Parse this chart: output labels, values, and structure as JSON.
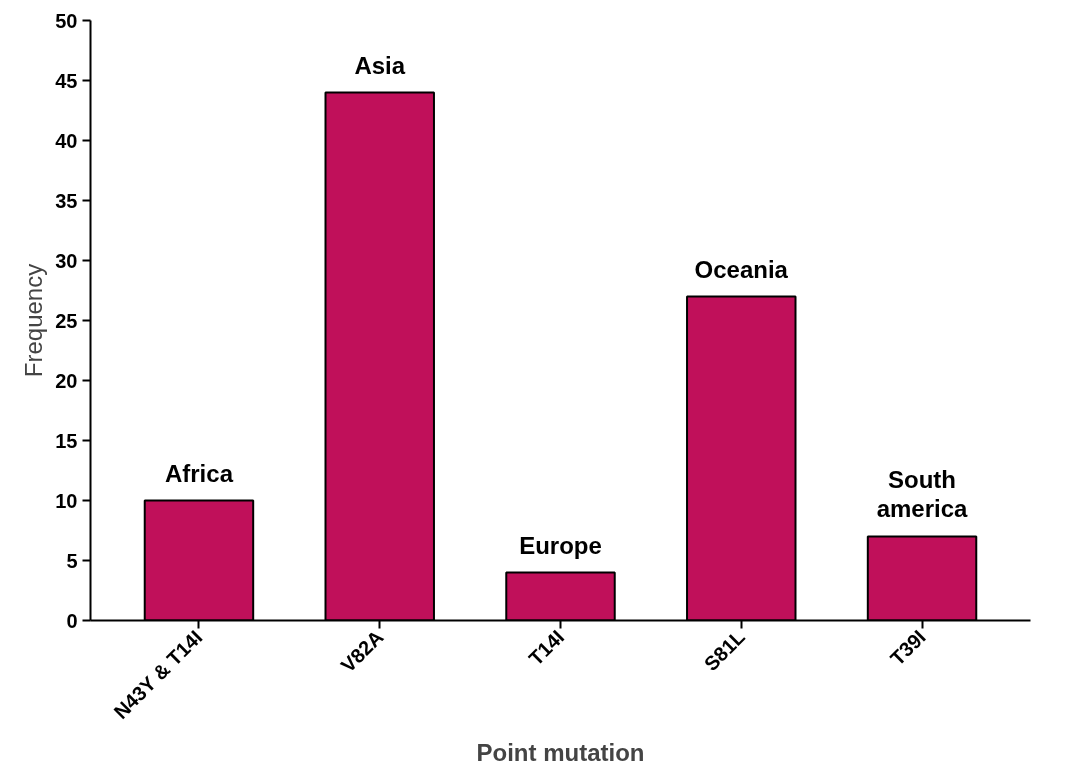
{
  "chart_data": {
    "type": "bar",
    "xlabel": "Point mutation",
    "ylabel": "Frequency",
    "categories": [
      "N43Y & T14I",
      "V82A",
      "T14I",
      "S81L",
      "T39I"
    ],
    "values": [
      10,
      44,
      4,
      27,
      7
    ],
    "color": "#c0105a",
    "ylim": [
      0,
      50
    ],
    "yticks": [
      0,
      5,
      10,
      15,
      20,
      25,
      30,
      35,
      40,
      45,
      50
    ],
    "grid": false,
    "annotations": [
      {
        "text": "Africa",
        "x": "N43Y & T14I",
        "y": 10
      },
      {
        "text": "Asia",
        "x": "V82A",
        "y": 44
      },
      {
        "text": "Europe",
        "x": "T14I",
        "y": 4
      },
      {
        "text": "Oceania",
        "x": "S81L",
        "y": 27
      },
      {
        "text": "South\namerica",
        "x": "T39I",
        "y": 7
      }
    ]
  }
}
